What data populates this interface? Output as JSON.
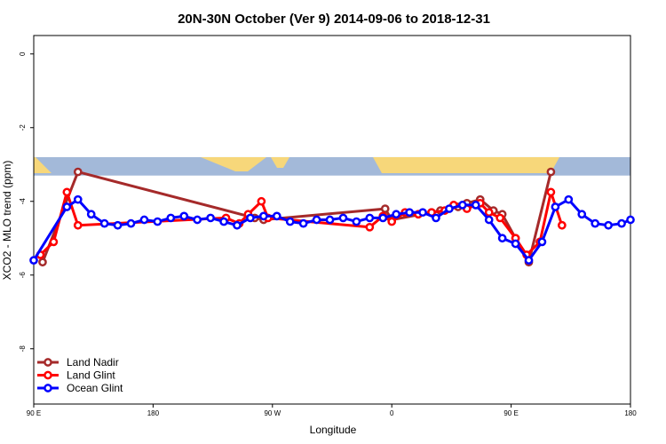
{
  "chart_data": {
    "type": "line",
    "title": "20N-30N October (Ver 9)   2014-09-06 to 2018-12-31",
    "xlabel": "Longitude",
    "ylabel": "XCO2 - MLO trend (ppm)",
    "xlim": [
      -90,
      180
    ],
    "ylim": [
      -9.5,
      0.5
    ],
    "x_ticks": [
      {
        "value": -90,
        "label": "90 E"
      },
      {
        "value": -36,
        "label": "180"
      },
      {
        "value": 18,
        "label": "90 W"
      },
      {
        "value": 72,
        "label": "0"
      },
      {
        "value": 126,
        "label": "90 E"
      },
      {
        "value": 180,
        "label": "180"
      }
    ],
    "y_ticks": [
      {
        "value": 0,
        "label": "0"
      },
      {
        "value": -2,
        "label": "-2"
      },
      {
        "value": -4,
        "label": "-4"
      },
      {
        "value": -6,
        "label": "-6"
      },
      {
        "value": -8,
        "label": "-8"
      }
    ],
    "grid": false,
    "legend_position": "bottom-left",
    "map_band": {
      "y_range": [
        -2.8,
        -3.3
      ],
      "ocean_color": "#a3b9d9",
      "land_color": "#f7d77a"
    },
    "series": [
      {
        "name": "Land Nadir",
        "color": "#a52a2a",
        "points": [
          [
            -86,
            -5.65
          ],
          [
            -70,
            -3.2
          ],
          [
            10,
            -4.45
          ],
          [
            14,
            -4.5
          ],
          [
            69,
            -4.2
          ],
          [
            72,
            -4.5
          ],
          [
            90,
            -4.3
          ],
          [
            94,
            -4.25
          ],
          [
            102,
            -4.15
          ],
          [
            106,
            -4.05
          ],
          [
            112,
            -3.95
          ],
          [
            118,
            -4.25
          ],
          [
            122,
            -4.35
          ],
          [
            128,
            -5.0
          ],
          [
            134,
            -5.65
          ],
          [
            144,
            -3.2
          ]
        ]
      },
      {
        "name": "Land Glint",
        "color": "#ff0000",
        "points": [
          [
            -87,
            -5.45
          ],
          [
            -81,
            -5.1
          ],
          [
            -75,
            -3.75
          ],
          [
            -70,
            -4.65
          ],
          [
            -3,
            -4.45
          ],
          [
            3,
            -4.6
          ],
          [
            7,
            -4.35
          ],
          [
            13,
            -4.0
          ],
          [
            16,
            -4.45
          ],
          [
            62,
            -4.7
          ],
          [
            68,
            -4.4
          ],
          [
            72,
            -4.55
          ],
          [
            78,
            -4.3
          ],
          [
            84,
            -4.35
          ],
          [
            90,
            -4.3
          ],
          [
            96,
            -4.25
          ],
          [
            100,
            -4.1
          ],
          [
            106,
            -4.2
          ],
          [
            112,
            -4.05
          ],
          [
            116,
            -4.3
          ],
          [
            121,
            -4.45
          ],
          [
            128,
            -5.0
          ],
          [
            133,
            -5.45
          ],
          [
            139,
            -5.1
          ],
          [
            144,
            -3.75
          ],
          [
            149,
            -4.65
          ]
        ]
      },
      {
        "name": "Ocean Glint",
        "color": "#0000ff",
        "points": [
          [
            -90,
            -5.6
          ],
          [
            -75,
            -4.15
          ],
          [
            -70,
            -3.95
          ],
          [
            -64,
            -4.35
          ],
          [
            -58,
            -4.6
          ],
          [
            -52,
            -4.65
          ],
          [
            -46,
            -4.6
          ],
          [
            -40,
            -4.5
          ],
          [
            -34,
            -4.55
          ],
          [
            -28,
            -4.45
          ],
          [
            -22,
            -4.4
          ],
          [
            -16,
            -4.5
          ],
          [
            -10,
            -4.45
          ],
          [
            -4,
            -4.55
          ],
          [
            2,
            -4.65
          ],
          [
            8,
            -4.45
          ],
          [
            14,
            -4.4
          ],
          [
            20,
            -4.4
          ],
          [
            26,
            -4.55
          ],
          [
            32,
            -4.6
          ],
          [
            38,
            -4.5
          ],
          [
            44,
            -4.5
          ],
          [
            50,
            -4.45
          ],
          [
            56,
            -4.55
          ],
          [
            62,
            -4.45
          ],
          [
            68,
            -4.45
          ],
          [
            74,
            -4.35
          ],
          [
            80,
            -4.3
          ],
          [
            86,
            -4.3
          ],
          [
            92,
            -4.45
          ],
          [
            98,
            -4.2
          ],
          [
            104,
            -4.1
          ],
          [
            110,
            -4.1
          ],
          [
            116,
            -4.5
          ],
          [
            122,
            -5.0
          ],
          [
            128,
            -5.15
          ],
          [
            134,
            -5.6
          ],
          [
            140,
            -5.1
          ],
          [
            146,
            -4.15
          ],
          [
            152,
            -3.95
          ],
          [
            158,
            -4.35
          ],
          [
            164,
            -4.6
          ],
          [
            170,
            -4.65
          ],
          [
            176,
            -4.6
          ],
          [
            180,
            -4.5
          ]
        ]
      }
    ]
  }
}
